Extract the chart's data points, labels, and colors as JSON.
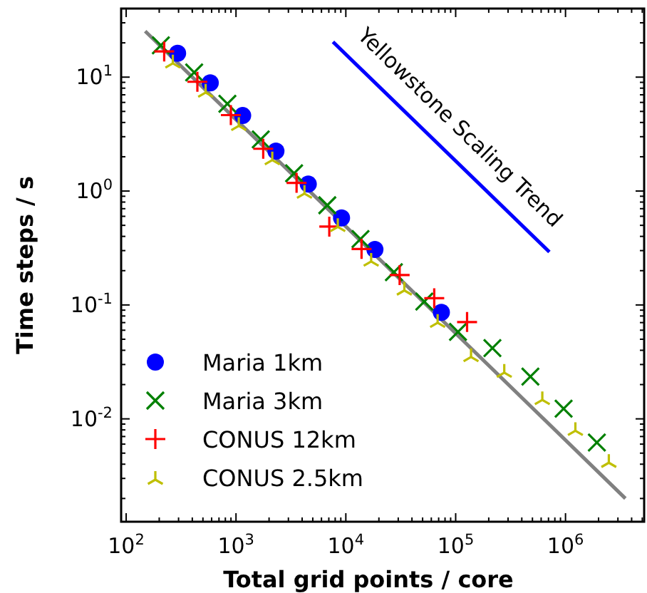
{
  "chart_data": {
    "type": "scatter",
    "xlabel": "Total grid points / core",
    "ylabel": "Time steps / s",
    "log": "xy",
    "xlim": [
      90,
      5200000
    ],
    "ylim": [
      0.00125,
      40
    ],
    "xticks": [
      {
        "value": 100,
        "label": "10$^{2}$"
      },
      {
        "value": 200,
        "label": null
      },
      {
        "value": 300,
        "label": null
      },
      {
        "value": 400,
        "label": null
      },
      {
        "value": 500,
        "label": null
      },
      {
        "value": 600,
        "label": null
      },
      {
        "value": 700,
        "label": null
      },
      {
        "value": 800,
        "label": null
      },
      {
        "value": 900,
        "label": null
      },
      {
        "value": 1000,
        "label": "10$^{3}$"
      },
      {
        "value": 2000,
        "label": null
      },
      {
        "value": 3000,
        "label": null
      },
      {
        "value": 4000,
        "label": null
      },
      {
        "value": 5000,
        "label": null
      },
      {
        "value": 6000,
        "label": null
      },
      {
        "value": 7000,
        "label": null
      },
      {
        "value": 8000,
        "label": null
      },
      {
        "value": 9000,
        "label": null
      },
      {
        "value": 10000,
        "label": "10$^{4}$"
      },
      {
        "value": 20000,
        "label": null
      },
      {
        "value": 30000,
        "label": null
      },
      {
        "value": 40000,
        "label": null
      },
      {
        "value": 50000,
        "label": null
      },
      {
        "value": 60000,
        "label": null
      },
      {
        "value": 70000,
        "label": null
      },
      {
        "value": 80000,
        "label": null
      },
      {
        "value": 90000,
        "label": null
      },
      {
        "value": 100000,
        "label": "10$^{5}$"
      },
      {
        "value": 200000,
        "label": null
      },
      {
        "value": 300000,
        "label": null
      },
      {
        "value": 400000,
        "label": null
      },
      {
        "value": 500000,
        "label": null
      },
      {
        "value": 600000,
        "label": null
      },
      {
        "value": 700000,
        "label": null
      },
      {
        "value": 800000,
        "label": null
      },
      {
        "value": 900000,
        "label": null
      },
      {
        "value": 1000000,
        "label": "10$^{6}$"
      },
      {
        "value": 2000000,
        "label": null
      },
      {
        "value": 3000000,
        "label": null
      },
      {
        "value": 4000000,
        "label": null
      },
      {
        "value": 5000000,
        "label": null
      }
    ],
    "yticks": [
      {
        "value": 0.002,
        "label": null
      },
      {
        "value": 0.003,
        "label": null
      },
      {
        "value": 0.004,
        "label": null
      },
      {
        "value": 0.005,
        "label": null
      },
      {
        "value": 0.006,
        "label": null
      },
      {
        "value": 0.007,
        "label": null
      },
      {
        "value": 0.008,
        "label": null
      },
      {
        "value": 0.009,
        "label": null
      },
      {
        "value": 0.01,
        "label": "10$^{-2}$"
      },
      {
        "value": 0.02,
        "label": null
      },
      {
        "value": 0.03,
        "label": null
      },
      {
        "value": 0.04,
        "label": null
      },
      {
        "value": 0.05,
        "label": null
      },
      {
        "value": 0.06,
        "label": null
      },
      {
        "value": 0.07,
        "label": null
      },
      {
        "value": 0.08,
        "label": null
      },
      {
        "value": 0.09,
        "label": null
      },
      {
        "value": 0.1,
        "label": "10$^{-1}$"
      },
      {
        "value": 0.2,
        "label": null
      },
      {
        "value": 0.3,
        "label": null
      },
      {
        "value": 0.4,
        "label": null
      },
      {
        "value": 0.5,
        "label": null
      },
      {
        "value": 0.6,
        "label": null
      },
      {
        "value": 0.7,
        "label": null
      },
      {
        "value": 0.8,
        "label": null
      },
      {
        "value": 0.9,
        "label": null
      },
      {
        "value": 1,
        "label": "10$^{0}$"
      },
      {
        "value": 2,
        "label": null
      },
      {
        "value": 3,
        "label": null
      },
      {
        "value": 4,
        "label": null
      },
      {
        "value": 5,
        "label": null
      },
      {
        "value": 6,
        "label": null
      },
      {
        "value": 7,
        "label": null
      },
      {
        "value": 8,
        "label": null
      },
      {
        "value": 9,
        "label": null
      },
      {
        "value": 10,
        "label": "10$^{1}$"
      },
      {
        "value": 20,
        "label": null
      },
      {
        "value": 30,
        "label": null
      }
    ],
    "legend": "bottom left",
    "grid": false,
    "series": [
      {
        "type": "line",
        "color": "#808080",
        "x": [
          149,
          3510000
        ],
        "values": [
          25.3,
          0.002
        ],
        "marker": "none",
        "line_style": "solid"
      },
      {
        "type": "line",
        "color": "#0000ff",
        "x": [
          7640,
          713000
        ],
        "values": [
          20.4,
          0.292
        ],
        "marker": "none",
        "line_style": "solid"
      },
      {
        "name": "Maria 1km",
        "color": "#0000ff",
        "marker": "circle",
        "x": [
          294,
          583,
          1150,
          2310,
          4550,
          9140,
          18400,
          74100
        ],
        "values": [
          16.2,
          8.9,
          4.6,
          2.24,
          1.15,
          0.58,
          0.307,
          0.086
        ]
      },
      {
        "name": "Maria 3km",
        "color": "#008000",
        "marker": "cross",
        "x": [
          207,
          416,
          835,
          1680,
          3380,
          6780,
          13600,
          27400,
          51800,
          105000,
          216000,
          479000,
          961000,
          1930000
        ],
        "values": [
          19.0,
          11.0,
          5.84,
          2.84,
          1.43,
          0.75,
          0.379,
          0.194,
          0.107,
          0.058,
          0.0418,
          0.0235,
          0.0123,
          0.0062
        ]
      },
      {
        "name": "CONUS 12km",
        "color": "#ff0000",
        "marker": "plus",
        "x": [
          222,
          445,
          898,
          1770,
          3560,
          7070,
          13900,
          30900,
          63800,
          127000
        ],
        "values": [
          16.8,
          9.1,
          4.64,
          2.35,
          1.18,
          0.487,
          0.31,
          0.183,
          0.1145,
          0.0708
        ]
      },
      {
        "name": "CONUS 2.5km",
        "color": "#bfbf00",
        "x": [
          266,
          529,
          1060,
          2140,
          4200,
          8450,
          17000,
          34100,
          68500,
          138000,
          277000,
          615000,
          1230000,
          2480000
        ],
        "values": [
          13.8,
          7.65,
          3.9,
          1.95,
          0.99,
          0.506,
          0.251,
          0.14,
          0.0729,
          0.0365,
          0.0266,
          0.0153,
          0.0082,
          0.0043
        ]
      }
    ],
    "annotations": [
      "Yellowstone Scaling Trend"
    ]
  }
}
